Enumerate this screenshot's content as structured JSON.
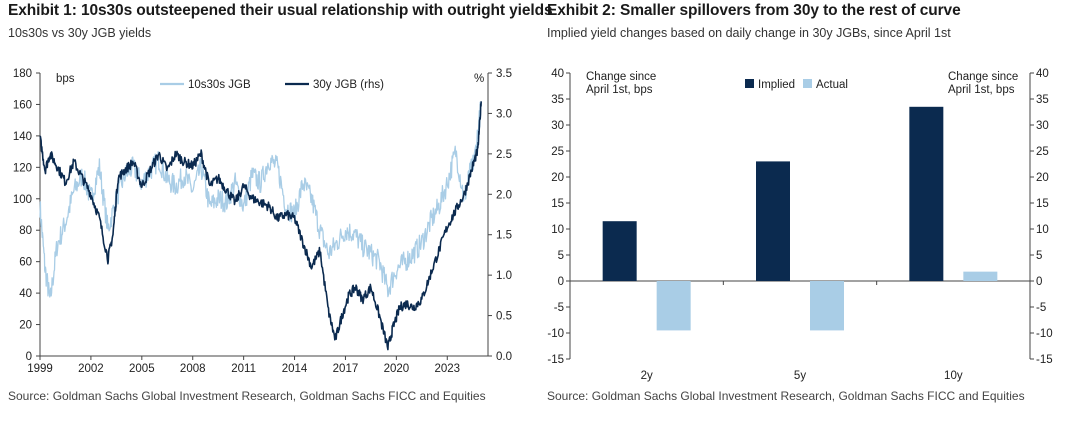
{
  "chart_data": [
    {
      "type": "line",
      "title": "Exhibit 1: 10s30s outsteepened their usual relationship with outright yields",
      "subtitle": "10s30s vs 30y JGB yields",
      "source": "Source: Goldman Sachs Global Investment Research, Goldman Sachs FICC and Equities",
      "y_left_unit": "bps",
      "y_right_unit": "%",
      "ylim_left": [
        0,
        180
      ],
      "ylim_right": [
        0,
        3.5
      ],
      "xlim": [
        1999,
        2025.4
      ],
      "x_ticks": [
        "1999",
        "2002",
        "2005",
        "2008",
        "2011",
        "2014",
        "2017",
        "2020",
        "2023"
      ],
      "y_left_ticks": [
        "0",
        "20",
        "40",
        "60",
        "80",
        "100",
        "120",
        "140",
        "160",
        "180"
      ],
      "y_right_ticks": [
        "0.0",
        "0.5",
        "1.0",
        "1.5",
        "2.0",
        "2.5",
        "3.0",
        "3.5"
      ],
      "legend_position": "top-center",
      "series": [
        {
          "name": "10s30s JGB",
          "axis": "left",
          "color": "#a9cde6",
          "x": [
            1999.0,
            1999.3,
            1999.6,
            2000.0,
            2000.5,
            2001.0,
            2001.5,
            2002.0,
            2002.5,
            2003.0,
            2003.5,
            2004.0,
            2004.5,
            2005.0,
            2005.5,
            2006.0,
            2006.5,
            2007.0,
            2007.5,
            2008.0,
            2008.5,
            2009.0,
            2009.5,
            2010.0,
            2010.5,
            2011.0,
            2011.5,
            2012.0,
            2012.5,
            2013.0,
            2013.5,
            2014.0,
            2014.5,
            2015.0,
            2015.5,
            2016.0,
            2016.5,
            2017.0,
            2017.5,
            2018.0,
            2018.5,
            2019.0,
            2019.5,
            2020.0,
            2020.5,
            2021.0,
            2021.5,
            2022.0,
            2022.5,
            2023.0,
            2023.5,
            2024.0,
            2024.3,
            2024.6,
            2025.0
          ],
          "values": [
            95,
            55,
            35,
            70,
            85,
            105,
            115,
            100,
            120,
            80,
            100,
            115,
            120,
            110,
            118,
            125,
            112,
            108,
            115,
            105,
            120,
            95,
            100,
            98,
            110,
            95,
            115,
            110,
            125,
            120,
            95,
            90,
            110,
            100,
            80,
            65,
            72,
            80,
            78,
            70,
            65,
            60,
            42,
            55,
            60,
            65,
            72,
            85,
            95,
            110,
            130,
            100,
            115,
            125,
            160
          ]
        },
        {
          "name": "30y JGB (rhs)",
          "axis": "right",
          "color": "#0b2a4f",
          "x": [
            1999.0,
            1999.3,
            1999.6,
            2000.0,
            2000.5,
            2001.0,
            2001.5,
            2002.0,
            2002.5,
            2003.0,
            2003.3,
            2003.6,
            2004.0,
            2004.5,
            2005.0,
            2005.5,
            2006.0,
            2006.5,
            2007.0,
            2007.5,
            2008.0,
            2008.5,
            2009.0,
            2009.5,
            2010.0,
            2010.5,
            2011.0,
            2011.5,
            2012.0,
            2012.5,
            2013.0,
            2013.5,
            2014.0,
            2014.5,
            2015.0,
            2015.5,
            2016.0,
            2016.4,
            2016.8,
            2017.2,
            2017.6,
            2018.0,
            2018.5,
            2019.0,
            2019.5,
            2019.8,
            2020.2,
            2020.6,
            2021.0,
            2021.5,
            2022.0,
            2022.5,
            2023.0,
            2023.5,
            2024.0,
            2024.5,
            2024.8,
            2025.0
          ],
          "values": [
            2.7,
            2.3,
            2.5,
            2.35,
            2.15,
            2.4,
            2.2,
            2.0,
            1.7,
            1.2,
            1.5,
            2.2,
            2.3,
            2.4,
            2.1,
            2.3,
            2.5,
            2.3,
            2.5,
            2.4,
            2.35,
            2.5,
            2.1,
            2.2,
            2.05,
            1.9,
            2.1,
            1.95,
            1.9,
            1.85,
            1.7,
            1.75,
            1.7,
            1.4,
            1.1,
            1.3,
            0.55,
            0.2,
            0.5,
            0.75,
            0.85,
            0.7,
            0.85,
            0.5,
            0.1,
            0.35,
            0.6,
            0.65,
            0.6,
            0.7,
            1.0,
            1.3,
            1.6,
            1.8,
            2.0,
            2.35,
            2.55,
            3.15
          ]
        }
      ]
    },
    {
      "type": "bar",
      "title": "Exhibit 2: Smaller spillovers from 30y to the rest of curve",
      "subtitle": "Implied yield changes based on daily change in 30y JGBs, since April 1st",
      "source": "Source: Goldman Sachs Global Investment Research, Goldman Sachs FICC and Equities",
      "categories": [
        "2y",
        "5y",
        "10y"
      ],
      "ylim": [
        -15,
        40
      ],
      "y_ticks": [
        "-15",
        "-10",
        "-5",
        "0",
        "5",
        "10",
        "15",
        "20",
        "25",
        "30",
        "35",
        "40"
      ],
      "left_axis_note": "Change since April 1st, bps",
      "right_axis_note": "Change since April 1st, bps",
      "legend_position": "top-center",
      "series": [
        {
          "name": "Implied",
          "color": "#0b2a4f",
          "values": [
            11.5,
            23,
            33.5
          ]
        },
        {
          "name": "Actual",
          "color": "#a9cde6",
          "values": [
            -9.5,
            -9.5,
            1.8
          ]
        }
      ]
    }
  ]
}
